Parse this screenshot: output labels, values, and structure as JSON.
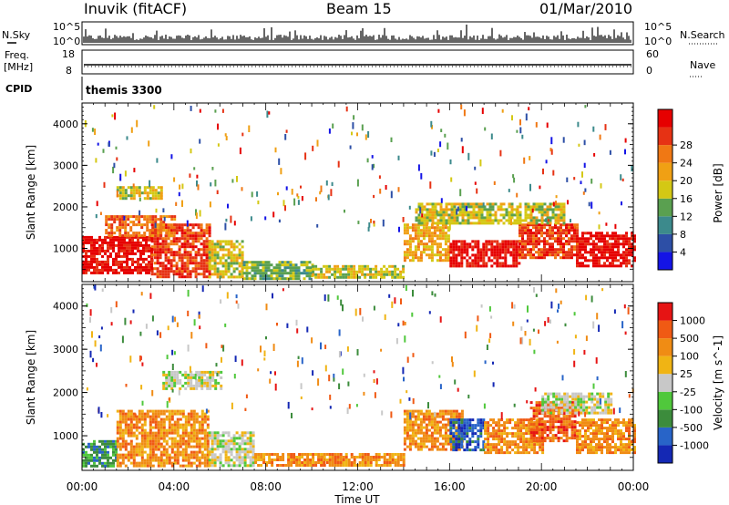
{
  "header": {
    "station": "Inuvik (fitACF)",
    "beam": "Beam 15",
    "date": "01/Mar/2010"
  },
  "top_panels": {
    "nsky_label": "N.Sky",
    "nsky_ticks": [
      "10^5",
      "10^0"
    ],
    "nsearch_label": "N.Search",
    "nsearch_ticks": [
      "10^5",
      "10^0"
    ],
    "freq_label_1": "Freq.",
    "freq_label_2": "[MHz]",
    "freq_ticks": [
      "18",
      "8"
    ],
    "nave_label": "Nave",
    "nave_ticks": [
      "60",
      "0"
    ],
    "cpid_label": "CPID",
    "cpid_value": "themis 3300"
  },
  "colors": {
    "power_scale": [
      "#1414e6",
      "#2d4fa6",
      "#3c8a8c",
      "#5aa050",
      "#d4c814",
      "#f0a014",
      "#f07814",
      "#e63214",
      "#e60000"
    ],
    "velocity_scale": [
      "#1428b4",
      "#2864c8",
      "#3c8c3c",
      "#50c83c",
      "#c8c8c8",
      "#f0b414",
      "#f08c14",
      "#f05a14",
      "#e61414"
    ]
  },
  "chart_data": [
    {
      "type": "heatmap",
      "name": "power-panel",
      "ylabel": "Slant Range [km]",
      "xlabel": "",
      "yticks": [
        "1000",
        "2000",
        "3000",
        "4000"
      ],
      "ylim": [
        200,
        4500
      ],
      "xlim": [
        0,
        24
      ],
      "colorbar_label": "Power [dB]",
      "colorbar_ticks": [
        "4",
        "8",
        "12",
        "16",
        "20",
        "24",
        "28"
      ],
      "regions": [
        {
          "x0": 0.0,
          "x1": 3.0,
          "y0": 400,
          "y1": 1300,
          "level": 8
        },
        {
          "x0": 3.0,
          "x1": 5.5,
          "y0": 300,
          "y1": 1600,
          "level": 7
        },
        {
          "x0": 5.5,
          "x1": 7.0,
          "y0": 300,
          "y1": 1200,
          "level": 4
        },
        {
          "x0": 1.0,
          "x1": 4.0,
          "y0": 1300,
          "y1": 1800,
          "level": 6
        },
        {
          "x0": 7.0,
          "x1": 10.0,
          "y0": 300,
          "y1": 700,
          "level": 3
        },
        {
          "x0": 10.0,
          "x1": 14.0,
          "y0": 300,
          "y1": 600,
          "level": 4
        },
        {
          "x0": 14.0,
          "x1": 16.0,
          "y0": 700,
          "y1": 1600,
          "level": 5
        },
        {
          "x0": 16.0,
          "x1": 19.0,
          "y0": 600,
          "y1": 1200,
          "level": 8
        },
        {
          "x0": 19.0,
          "x1": 21.5,
          "y0": 800,
          "y1": 1600,
          "level": 7
        },
        {
          "x0": 21.5,
          "x1": 24.0,
          "y0": 600,
          "y1": 1400,
          "level": 8
        },
        {
          "x0": 14.5,
          "x1": 21.0,
          "y0": 1600,
          "y1": 2100,
          "level": 4
        },
        {
          "x0": 1.5,
          "x1": 3.5,
          "y0": 2200,
          "y1": 2500,
          "level": 4
        }
      ]
    },
    {
      "type": "heatmap",
      "name": "velocity-panel",
      "ylabel": "Slant Range [km]",
      "xlabel": "Time UT",
      "yticks": [
        "1000",
        "2000",
        "3000",
        "4000"
      ],
      "ylim": [
        200,
        4500
      ],
      "xlim": [
        0,
        24
      ],
      "xticks": [
        "00:00",
        "04:00",
        "08:00",
        "12:00",
        "16:00",
        "20:00",
        "00:00"
      ],
      "colorbar_label": "Velocity [m s^-1]",
      "colorbar_ticks": [
        "1000",
        "500",
        "100",
        "25",
        "-25",
        "-100",
        "-500",
        "-1000"
      ],
      "regions": [
        {
          "x0": 0.0,
          "x1": 1.5,
          "y0": 300,
          "y1": 900,
          "level": 2
        },
        {
          "x0": 1.5,
          "x1": 5.5,
          "y0": 300,
          "y1": 1600,
          "level": 6
        },
        {
          "x0": 5.5,
          "x1": 7.5,
          "y0": 300,
          "y1": 1100,
          "level": 4
        },
        {
          "x0": 3.5,
          "x1": 6.0,
          "y0": 2100,
          "y1": 2500,
          "level": 4
        },
        {
          "x0": 7.5,
          "x1": 10.5,
          "y0": 300,
          "y1": 600,
          "level": 6
        },
        {
          "x0": 10.5,
          "x1": 14.0,
          "y0": 300,
          "y1": 600,
          "level": 6
        },
        {
          "x0": 14.0,
          "x1": 16.5,
          "y0": 700,
          "y1": 1600,
          "level": 6
        },
        {
          "x0": 16.0,
          "x1": 17.5,
          "y0": 700,
          "y1": 1400,
          "level": 1
        },
        {
          "x0": 17.5,
          "x1": 20.0,
          "y0": 600,
          "y1": 1400,
          "level": 6
        },
        {
          "x0": 19.5,
          "x1": 21.5,
          "y0": 900,
          "y1": 1800,
          "level": 7
        },
        {
          "x0": 21.5,
          "x1": 24.0,
          "y0": 600,
          "y1": 1400,
          "level": 6
        },
        {
          "x0": 20.0,
          "x1": 23.0,
          "y0": 1500,
          "y1": 2000,
          "level": 4
        }
      ]
    }
  ]
}
